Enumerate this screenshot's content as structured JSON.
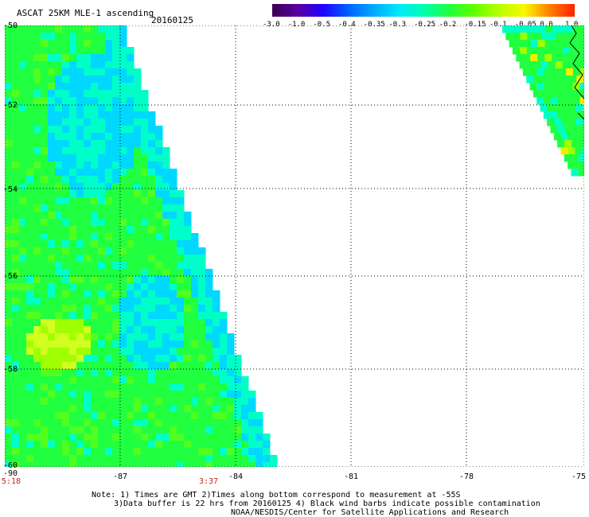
{
  "header": {
    "title": "ASCAT 25KM MLE-1 ascending",
    "date": "20160125"
  },
  "colorbar": {
    "labels": [
      "-3.0",
      "-1.0",
      "-0.5",
      "-0.4",
      "-0.35",
      "-0.3",
      "-0.25",
      "-0.2",
      "-0.15",
      "-0.1",
      "-0.05",
      "0.0",
      "1.0"
    ],
    "colors": [
      "#3a0050",
      "#5a00a0",
      "#2000ff",
      "#0060ff",
      "#00a8ff",
      "#00e8ff",
      "#00ffb0",
      "#20ff40",
      "#60ff00",
      "#b8ff00",
      "#f8f800",
      "#ff8000",
      "#ff2000"
    ]
  },
  "axes": {
    "y_labels": [
      "-50",
      "-52",
      "-54",
      "-56",
      "-58",
      "-60"
    ],
    "x_labels": [
      "-90",
      "-87",
      "-84",
      "-81",
      "-78",
      "-75"
    ],
    "time_labels": [
      "5:18",
      "3:37"
    ]
  },
  "notes": {
    "line1": "Note: 1) Times are GMT 2)Times along bottom correspond to measurement at -55S",
    "line2": "3)Data buffer is 22 hrs from 20160125 4) Black wind barbs indicate possible contamination",
    "line3": "NOAA/NESDIS/Center for Satellite Applications and Research"
  },
  "colors": {
    "swath_primary": "#20ff40",
    "swath_secondary": "#00ffc8",
    "swath_low": "#00d8ff",
    "highlight": "#f0f000"
  }
}
